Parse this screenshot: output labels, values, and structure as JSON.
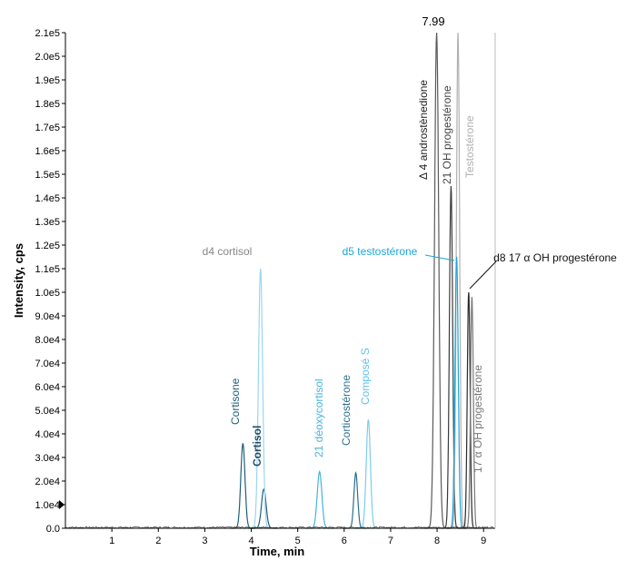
{
  "chart_data": {
    "type": "line",
    "title": "",
    "xlabel": "Time, min",
    "ylabel": "Intensity, cps",
    "xlim": [
      0,
      9.25
    ],
    "ylim": [
      0,
      210000
    ],
    "grid": false,
    "legend": "none",
    "x_ticks": [
      {
        "value": 1,
        "label": "1"
      },
      {
        "value": 2,
        "label": "2"
      },
      {
        "value": 3,
        "label": "3"
      },
      {
        "value": 4,
        "label": "4"
      },
      {
        "value": 5,
        "label": "5"
      },
      {
        "value": 6,
        "label": "6"
      },
      {
        "value": 7,
        "label": "7"
      },
      {
        "value": 8,
        "label": "8"
      },
      {
        "value": 9,
        "label": "9"
      }
    ],
    "y_ticks": [
      {
        "value": 0,
        "label": "0.0"
      },
      {
        "value": 10000,
        "label": "1.0e4"
      },
      {
        "value": 20000,
        "label": "2.0e4"
      },
      {
        "value": 30000,
        "label": "3.0e4"
      },
      {
        "value": 40000,
        "label": "4.0e4"
      },
      {
        "value": 50000,
        "label": "5.0e4"
      },
      {
        "value": 60000,
        "label": "6.0e4"
      },
      {
        "value": 70000,
        "label": "7.0e4"
      },
      {
        "value": 80000,
        "label": "8.0e4"
      },
      {
        "value": 90000,
        "label": "9.0e4"
      },
      {
        "value": 100000,
        "label": "1.0e5"
      },
      {
        "value": 110000,
        "label": "1.1e5"
      },
      {
        "value": 120000,
        "label": "1.2e5"
      },
      {
        "value": 130000,
        "label": "1.3e5"
      },
      {
        "value": 140000,
        "label": "1.4e5"
      },
      {
        "value": 150000,
        "label": "1.5e5"
      },
      {
        "value": 160000,
        "label": "1.6e5"
      },
      {
        "value": 170000,
        "label": "1.7e5"
      },
      {
        "value": 180000,
        "label": "1.8e5"
      },
      {
        "value": 190000,
        "label": "1.9e5"
      },
      {
        "value": 200000,
        "label": "2.0e5"
      },
      {
        "value": 210000,
        "label": "2.1e5"
      }
    ],
    "y_marker_value": 10000,
    "peaks": [
      {
        "label": "Cortisone",
        "rt": 3.82,
        "height": 36000,
        "width": 0.045,
        "color": "#1f5f7a"
      },
      {
        "label": "Cortisol",
        "rt": 4.27,
        "height": 16500,
        "width": 0.05,
        "color": "#1f5f7a"
      },
      {
        "label": "d4 cortisol",
        "rt": 4.2,
        "height": 110000,
        "width": 0.045,
        "color": "#9ad6ee"
      },
      {
        "label": "21 déoxycortisol",
        "rt": 5.47,
        "height": 24000,
        "width": 0.05,
        "color": "#48b3dc"
      },
      {
        "label": "Corticostérone",
        "rt": 6.25,
        "height": 23500,
        "width": 0.04,
        "color": "#2b6f8c"
      },
      {
        "label": "Composé S",
        "rt": 6.52,
        "height": 46000,
        "width": 0.045,
        "color": "#7ccdee"
      },
      {
        "label": "Δ 4 androstènedione",
        "rt": 7.99,
        "height": 210000,
        "width": 0.045,
        "color": "#5a5a5a"
      },
      {
        "label": "21 OH progestérone",
        "rt": 8.3,
        "height": 145000,
        "width": 0.035,
        "color": "#3a3a3a"
      },
      {
        "label": "Testostérone",
        "rt": 8.45,
        "height": 210000,
        "width": 0.035,
        "color": "#b0b0b0"
      },
      {
        "label": "d5 testostérone",
        "rt": 8.42,
        "height": 115000,
        "width": 0.035,
        "color": "#1aa6d8"
      },
      {
        "label": "d8 17 α OH progestérone",
        "rt": 8.68,
        "height": 100000,
        "width": 0.03,
        "color": "#2a2a2a"
      },
      {
        "label": "17 α OH progestérone",
        "rt": 8.75,
        "height": 98000,
        "width": 0.03,
        "color": "#7a7a7a"
      }
    ],
    "annotations": [
      {
        "text": "7.99",
        "color": "#000000"
      },
      {
        "text": "Cortisone",
        "color": "#1f5f7a"
      },
      {
        "text": "Cortisol",
        "color": "#1f4f6a"
      },
      {
        "text": "d4 cortisol",
        "color": "#888888"
      },
      {
        "text": "21 déoxycortisol",
        "color": "#48b3dc"
      },
      {
        "text": "Corticostérone",
        "color": "#2b6f8c"
      },
      {
        "text": "Composé S",
        "color": "#5fc2ea"
      },
      {
        "text": "Δ 4 androstènedione",
        "color": "#222222"
      },
      {
        "text": "21 OH progestérone",
        "color": "#444444"
      },
      {
        "text": "Testostérone",
        "color": "#b0b0b0"
      },
      {
        "text": "d5 testostérone",
        "color": "#1aa6d8"
      },
      {
        "text": "d8 17 α OH progestérone",
        "color": "#111111"
      },
      {
        "text": "17 α OH progestérone",
        "color": "#777777"
      }
    ]
  }
}
